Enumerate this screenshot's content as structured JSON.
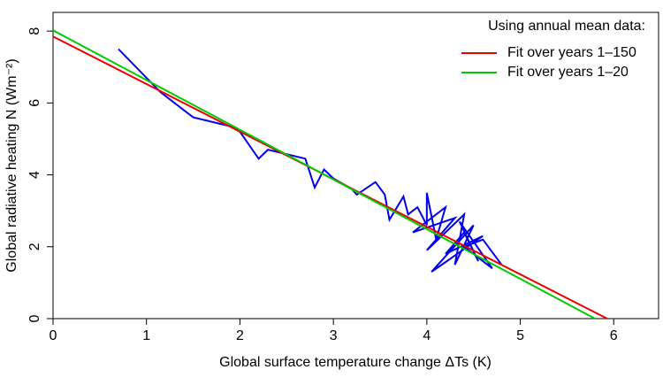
{
  "chart_data": {
    "type": "line",
    "x_label": "Global surface temperature change ΔTs (K)",
    "y_label": "Global radiative heating N (Wm⁻²)",
    "legend_title": "Using annual mean data:",
    "legend": "top-right",
    "xlim": [
      0,
      6.48
    ],
    "ylim": [
      0,
      8.52
    ],
    "xticks": [
      0,
      1,
      2,
      3,
      4,
      5,
      6
    ],
    "yticks": [
      0,
      2,
      4,
      6,
      8
    ],
    "series": [
      {
        "color": "#0000ee",
        "x": [
          0.7,
          1.15,
          1.5,
          1.9,
          2.0,
          2.2,
          2.3,
          2.7,
          2.8,
          2.9,
          3.0,
          3.2,
          3.25,
          3.45,
          3.55,
          3.6,
          3.75,
          3.8,
          3.9,
          4.0,
          4.0,
          4.1,
          4.2,
          3.85,
          4.3,
          4.0,
          4.4,
          4.3,
          4.5,
          4.05,
          4.6,
          4.2,
          4.4,
          4.55,
          4.35,
          4.7,
          4.4,
          4.6,
          4.8
        ],
        "values": [
          7.5,
          6.3,
          5.6,
          5.35,
          5.2,
          4.45,
          4.7,
          4.45,
          3.65,
          4.15,
          3.9,
          3.6,
          3.45,
          3.8,
          3.45,
          2.75,
          3.4,
          2.9,
          3.1,
          2.6,
          3.5,
          2.2,
          3.1,
          2.4,
          2.8,
          1.9,
          2.9,
          1.5,
          2.6,
          1.3,
          2.3,
          1.8,
          2.4,
          1.6,
          2.7,
          1.4,
          2.0,
          2.2,
          1.5
        ]
      },
      {
        "name": "Fit over years 1–150",
        "color": "#ee0000",
        "x": [
          0,
          5.93
        ],
        "values": [
          7.85,
          0
        ]
      },
      {
        "name": "Fit over years 1–20",
        "color": "#00cc00",
        "x": [
          0,
          5.8
        ],
        "values": [
          8.02,
          0
        ]
      }
    ]
  }
}
